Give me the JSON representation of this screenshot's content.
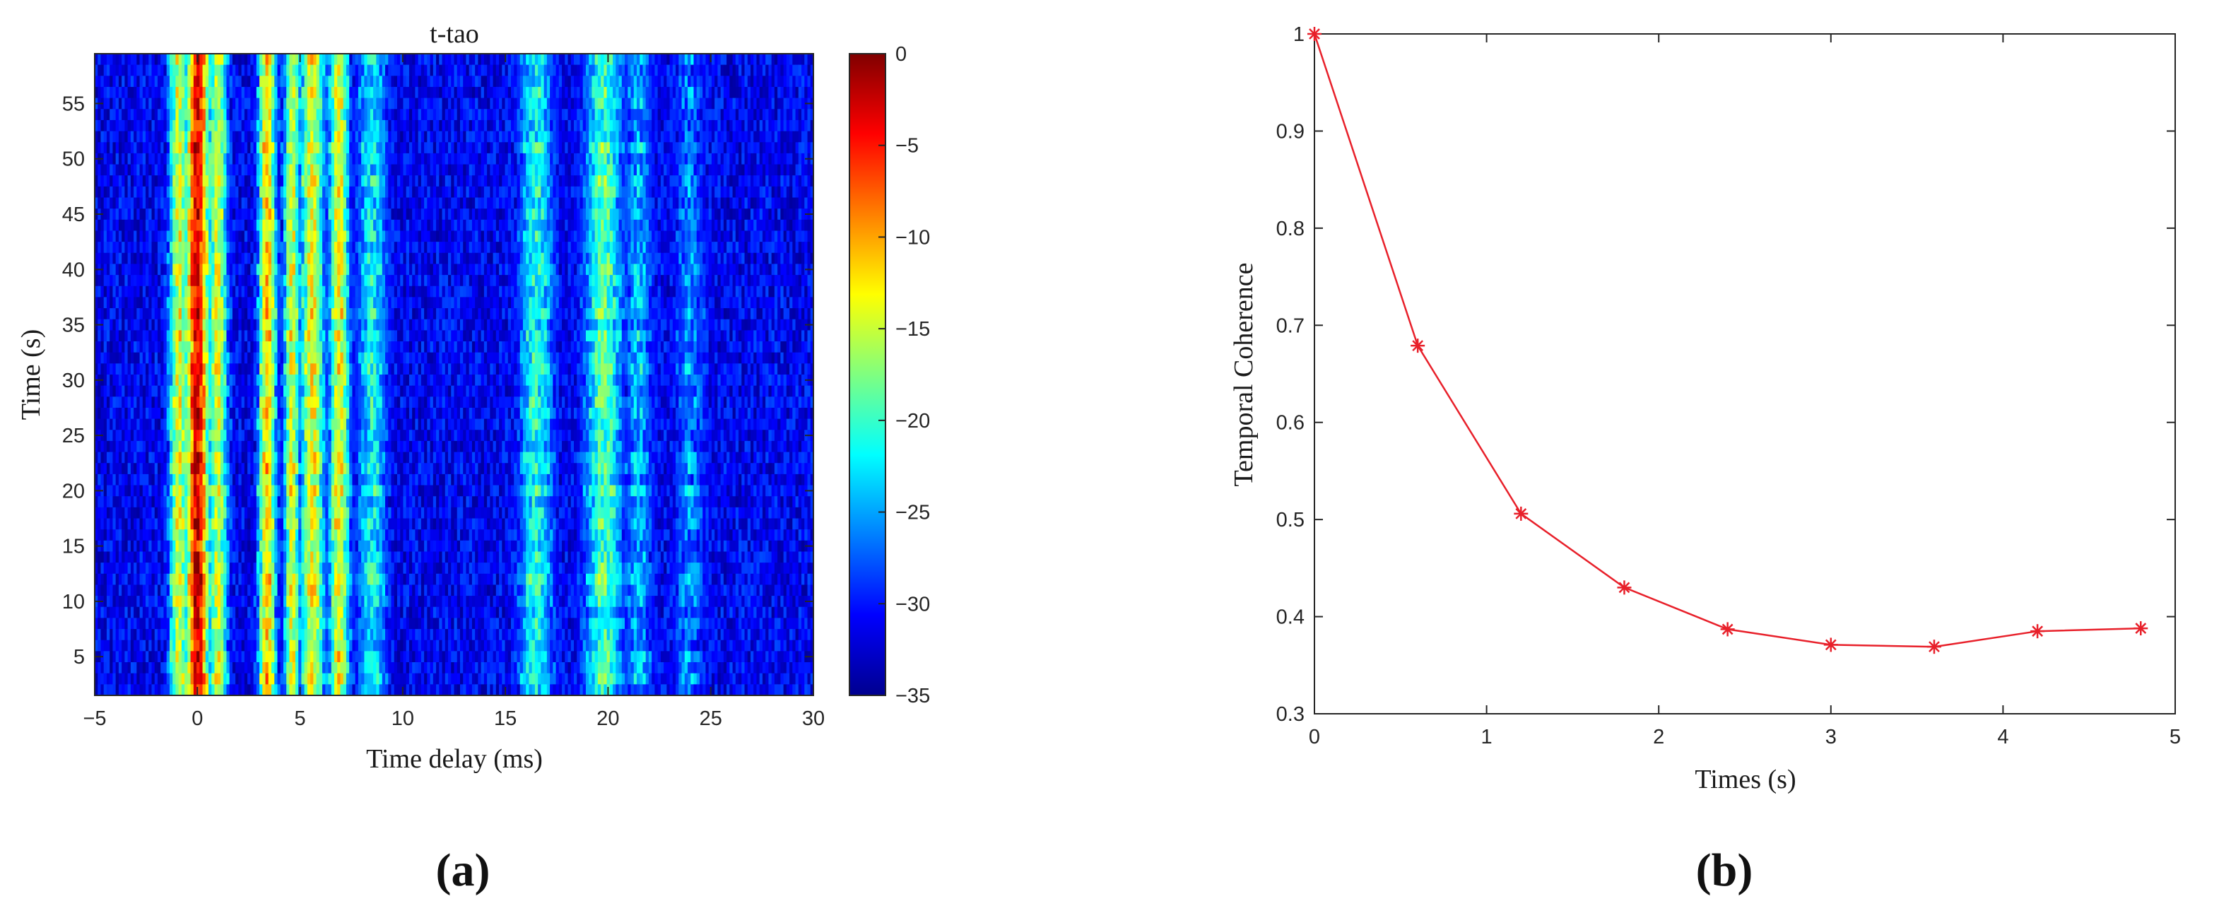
{
  "chart_data": [
    {
      "type": "heatmap",
      "panel_label": "(a)",
      "title": "t-tao",
      "xlabel": "Time delay (ms)",
      "ylabel": "Time (s)",
      "xlim": [
        -5,
        30
      ],
      "ylim": [
        1.5,
        59.5
      ],
      "xticks": [
        "−5",
        "0",
        "5",
        "10",
        "15",
        "20",
        "25",
        "30"
      ],
      "xtick_values": [
        -5,
        0,
        5,
        10,
        15,
        20,
        25,
        30
      ],
      "yticks": [
        "5",
        "10",
        "15",
        "20",
        "25",
        "30",
        "35",
        "40",
        "45",
        "50",
        "55"
      ],
      "ytick_values": [
        5,
        10,
        15,
        20,
        25,
        30,
        35,
        40,
        45,
        50,
        55
      ],
      "colorbar": {
        "range": [
          -35,
          0
        ],
        "colormap": "jet",
        "ticks": [
          "0",
          "−5",
          "−10",
          "−15",
          "−20",
          "−25",
          "−30",
          "−35"
        ],
        "tick_values": [
          0,
          -5,
          -10,
          -15,
          -20,
          -25,
          -30,
          -35
        ]
      },
      "features": [
        {
          "delay_ms": 0,
          "level_db": -3,
          "width_ms": 0.6
        },
        {
          "delay_ms": -0.9,
          "level_db": -14,
          "width_ms": 0.5
        },
        {
          "delay_ms": 1.0,
          "level_db": -15,
          "width_ms": 0.5
        },
        {
          "delay_ms": 3.4,
          "level_db": -11,
          "width_ms": 0.45
        },
        {
          "delay_ms": 4.6,
          "level_db": -14,
          "width_ms": 0.4
        },
        {
          "delay_ms": 5.6,
          "level_db": -13,
          "width_ms": 0.6
        },
        {
          "delay_ms": 6.9,
          "level_db": -13,
          "width_ms": 0.5
        },
        {
          "delay_ms": 8.5,
          "level_db": -22,
          "width_ms": 0.8
        },
        {
          "delay_ms": 16.5,
          "level_db": -21,
          "width_ms": 0.9
        },
        {
          "delay_ms": 19.8,
          "level_db": -19,
          "width_ms": 1.0
        },
        {
          "delay_ms": 21.5,
          "level_db": -24,
          "width_ms": 0.7
        },
        {
          "delay_ms": 24,
          "level_db": -26,
          "width_ms": 0.8
        }
      ]
    },
    {
      "type": "line",
      "panel_label": "(b)",
      "xlabel": "Times (s)",
      "ylabel": "Temporal Coherence",
      "xlim": [
        0,
        5
      ],
      "ylim": [
        0.3,
        1
      ],
      "xticks": [
        "0",
        "1",
        "2",
        "3",
        "4",
        "5"
      ],
      "xtick_values": [
        0,
        1,
        2,
        3,
        4,
        5
      ],
      "yticks": [
        "0.3",
        "0.4",
        "0.5",
        "0.6",
        "0.7",
        "0.8",
        "0.9",
        "1"
      ],
      "ytick_values": [
        0.3,
        0.4,
        0.5,
        0.6,
        0.7,
        0.8,
        0.9,
        1
      ],
      "marker": "asterisk",
      "color": "#e8202a",
      "x": [
        0,
        0.6,
        1.2,
        1.8,
        2.4,
        3.0,
        3.6,
        4.2,
        4.8
      ],
      "y": [
        1.0,
        0.679,
        0.506,
        0.43,
        0.387,
        0.371,
        0.369,
        0.385,
        0.388
      ]
    }
  ]
}
